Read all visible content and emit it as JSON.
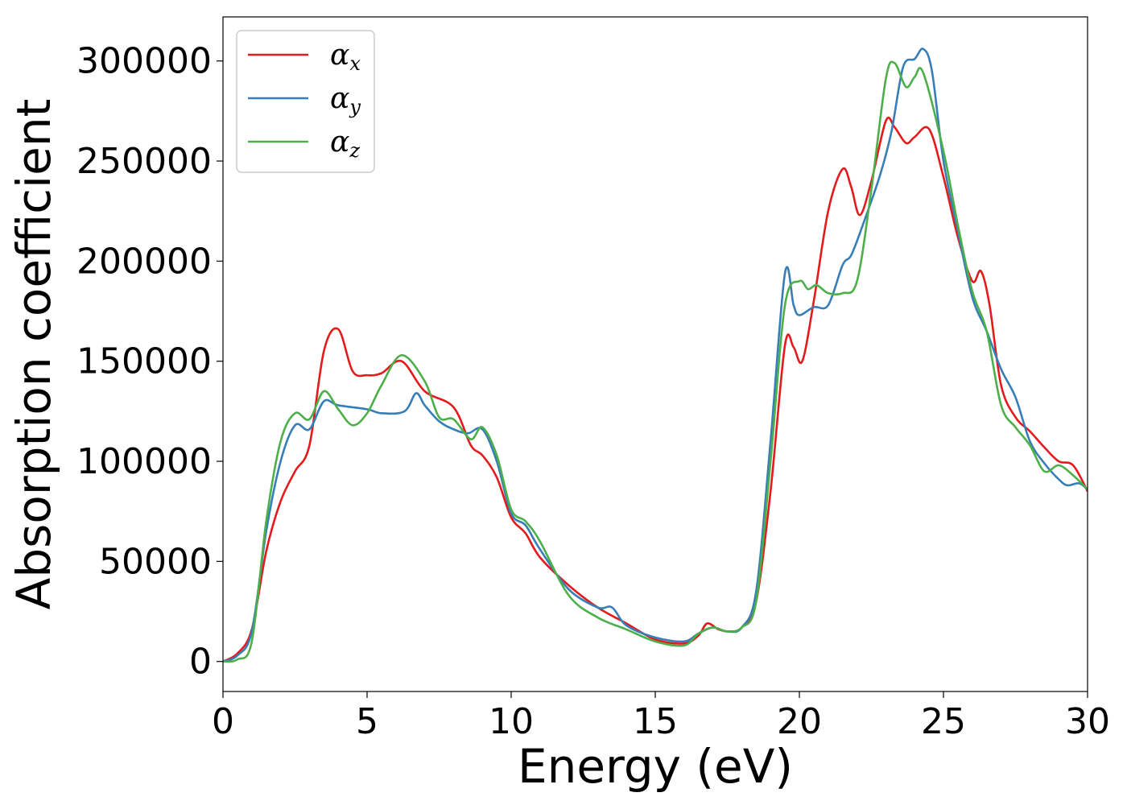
{
  "chart_data": {
    "type": "line",
    "title": "",
    "xlabel": "Energy (eV)",
    "ylabel": "Absorption coefficient",
    "xlim": [
      0,
      30
    ],
    "ylim": [
      -15000,
      322000
    ],
    "xticks": [
      0,
      5,
      10,
      15,
      20,
      25,
      30
    ],
    "yticks": [
      0,
      50000,
      100000,
      150000,
      200000,
      250000,
      300000
    ],
    "grid": false,
    "legend": "top-left",
    "series": [
      {
        "name": "αx",
        "symbol": "α",
        "subscript": "x",
        "color": "#e41a1c",
        "points": [
          [
            0,
            0
          ],
          [
            0.5,
            4000
          ],
          [
            1,
            16000
          ],
          [
            1.5,
            55000
          ],
          [
            2,
            80000
          ],
          [
            2.5,
            95000
          ],
          [
            3,
            108000
          ],
          [
            3.5,
            155000
          ],
          [
            4,
            166000
          ],
          [
            4.5,
            145000
          ],
          [
            5,
            143000
          ],
          [
            5.5,
            144000
          ],
          [
            6.2,
            150000
          ],
          [
            7,
            135000
          ],
          [
            8,
            127000
          ],
          [
            8.6,
            108000
          ],
          [
            9,
            103000
          ],
          [
            9.5,
            92000
          ],
          [
            10,
            72000
          ],
          [
            10.5,
            64000
          ],
          [
            11,
            52000
          ],
          [
            12,
            38000
          ],
          [
            13,
            27000
          ],
          [
            14,
            19000
          ],
          [
            15,
            11000
          ],
          [
            16,
            9000
          ],
          [
            16.5,
            13000
          ],
          [
            16.8,
            19000
          ],
          [
            17.2,
            16000
          ],
          [
            17.6,
            15000
          ],
          [
            18,
            17000
          ],
          [
            18.5,
            30000
          ],
          [
            19,
            85000
          ],
          [
            19.5,
            158000
          ],
          [
            19.8,
            157000
          ],
          [
            20.1,
            150000
          ],
          [
            20.5,
            180000
          ],
          [
            21,
            225000
          ],
          [
            21.5,
            246000
          ],
          [
            21.8,
            237000
          ],
          [
            22.1,
            223000
          ],
          [
            22.5,
            240000
          ],
          [
            23,
            270000
          ],
          [
            23.3,
            267000
          ],
          [
            23.7,
            259000
          ],
          [
            24,
            262000
          ],
          [
            24.5,
            266000
          ],
          [
            25,
            242000
          ],
          [
            25.5,
            212000
          ],
          [
            26,
            190000
          ],
          [
            26.3,
            195000
          ],
          [
            26.6,
            178000
          ],
          [
            27,
            138000
          ],
          [
            27.5,
            122000
          ],
          [
            28,
            115000
          ],
          [
            28.5,
            107000
          ],
          [
            29,
            100000
          ],
          [
            29.5,
            98000
          ],
          [
            30,
            85000
          ]
        ]
      },
      {
        "name": "αy",
        "symbol": "α",
        "subscript": "y",
        "color": "#377eb8",
        "points": [
          [
            0,
            0
          ],
          [
            0.5,
            3000
          ],
          [
            1,
            15000
          ],
          [
            1.5,
            65000
          ],
          [
            2,
            100000
          ],
          [
            2.5,
            118000
          ],
          [
            3,
            116000
          ],
          [
            3.5,
            130000
          ],
          [
            4,
            128000
          ],
          [
            5,
            126000
          ],
          [
            5.5,
            124000
          ],
          [
            6.3,
            125000
          ],
          [
            6.7,
            134000
          ],
          [
            7,
            128000
          ],
          [
            7.5,
            120000
          ],
          [
            8,
            116000
          ],
          [
            8.5,
            114000
          ],
          [
            9,
            116000
          ],
          [
            9.5,
            100000
          ],
          [
            10,
            74000
          ],
          [
            10.5,
            68000
          ],
          [
            11,
            56000
          ],
          [
            12,
            36000
          ],
          [
            13,
            27000
          ],
          [
            13.5,
            27000
          ],
          [
            14,
            18000
          ],
          [
            15,
            12000
          ],
          [
            16,
            10000
          ],
          [
            16.5,
            14000
          ],
          [
            17,
            17000
          ],
          [
            17.5,
            15000
          ],
          [
            18,
            17000
          ],
          [
            18.5,
            35000
          ],
          [
            19,
            110000
          ],
          [
            19.5,
            194000
          ],
          [
            19.8,
            178000
          ],
          [
            20,
            173000
          ],
          [
            20.5,
            177000
          ],
          [
            21,
            178000
          ],
          [
            21.5,
            198000
          ],
          [
            21.8,
            203000
          ],
          [
            22.2,
            218000
          ],
          [
            22.8,
            243000
          ],
          [
            23.2,
            265000
          ],
          [
            23.6,
            297000
          ],
          [
            24,
            301000
          ],
          [
            24.3,
            306000
          ],
          [
            24.6,
            295000
          ],
          [
            25,
            250000
          ],
          [
            25.5,
            215000
          ],
          [
            26,
            182000
          ],
          [
            26.5,
            165000
          ],
          [
            27,
            146000
          ],
          [
            27.5,
            132000
          ],
          [
            28,
            110000
          ],
          [
            28.5,
            99000
          ],
          [
            29,
            91000
          ],
          [
            29.3,
            88000
          ],
          [
            29.7,
            89000
          ],
          [
            30,
            86000
          ]
        ]
      },
      {
        "name": "αz",
        "symbol": "α",
        "subscript": "z",
        "color": "#4daf4a",
        "points": [
          [
            0,
            0
          ],
          [
            0.5,
            1000
          ],
          [
            1,
            10000
          ],
          [
            1.5,
            70000
          ],
          [
            2,
            110000
          ],
          [
            2.5,
            124000
          ],
          [
            3,
            121000
          ],
          [
            3.5,
            135000
          ],
          [
            4,
            126000
          ],
          [
            4.5,
            118000
          ],
          [
            5,
            124000
          ],
          [
            5.5,
            138000
          ],
          [
            6.2,
            153000
          ],
          [
            7,
            140000
          ],
          [
            7.5,
            122000
          ],
          [
            8,
            121000
          ],
          [
            8.6,
            111000
          ],
          [
            9,
            117000
          ],
          [
            9.5,
            103000
          ],
          [
            10,
            76000
          ],
          [
            10.5,
            70000
          ],
          [
            11,
            60000
          ],
          [
            12,
            33000
          ],
          [
            13,
            22000
          ],
          [
            14,
            16000
          ],
          [
            15,
            10000
          ],
          [
            16,
            8000
          ],
          [
            16.5,
            14000
          ],
          [
            17,
            17000
          ],
          [
            17.5,
            15000
          ],
          [
            18,
            17000
          ],
          [
            18.5,
            30000
          ],
          [
            19,
            100000
          ],
          [
            19.5,
            178000
          ],
          [
            20,
            190000
          ],
          [
            20.3,
            186000
          ],
          [
            20.6,
            188000
          ],
          [
            21,
            184000
          ],
          [
            21.5,
            184000
          ],
          [
            22,
            190000
          ],
          [
            22.5,
            236000
          ],
          [
            23,
            291000
          ],
          [
            23.3,
            299000
          ],
          [
            23.7,
            287000
          ],
          [
            24,
            292000
          ],
          [
            24.3,
            294000
          ],
          [
            25,
            255000
          ],
          [
            25.5,
            218000
          ],
          [
            26,
            185000
          ],
          [
            26.5,
            165000
          ],
          [
            27,
            128000
          ],
          [
            27.5,
            117000
          ],
          [
            28,
            108000
          ],
          [
            28.5,
            95000
          ],
          [
            29,
            98000
          ],
          [
            29.5,
            93000
          ],
          [
            30,
            86000
          ]
        ]
      }
    ]
  }
}
